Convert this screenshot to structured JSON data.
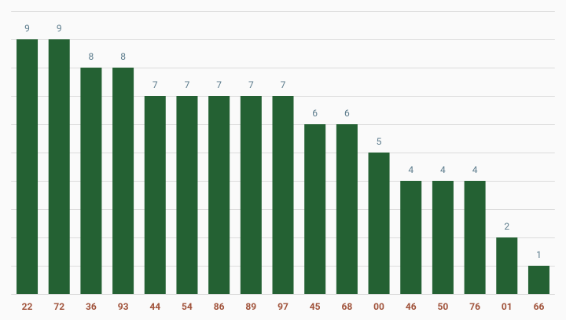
{
  "chart_data": {
    "type": "bar",
    "categories": [
      "22",
      "72",
      "36",
      "93",
      "44",
      "54",
      "86",
      "89",
      "97",
      "45",
      "68",
      "00",
      "46",
      "50",
      "76",
      "01",
      "66"
    ],
    "values": [
      9,
      9,
      8,
      8,
      7,
      7,
      7,
      7,
      7,
      6,
      6,
      5,
      4,
      4,
      4,
      2,
      1
    ],
    "color": "#246133",
    "ylim": [
      0,
      10
    ],
    "yticks": [
      0,
      1,
      2,
      3,
      4,
      5,
      6,
      7,
      8,
      9,
      10
    ],
    "grid": true
  }
}
